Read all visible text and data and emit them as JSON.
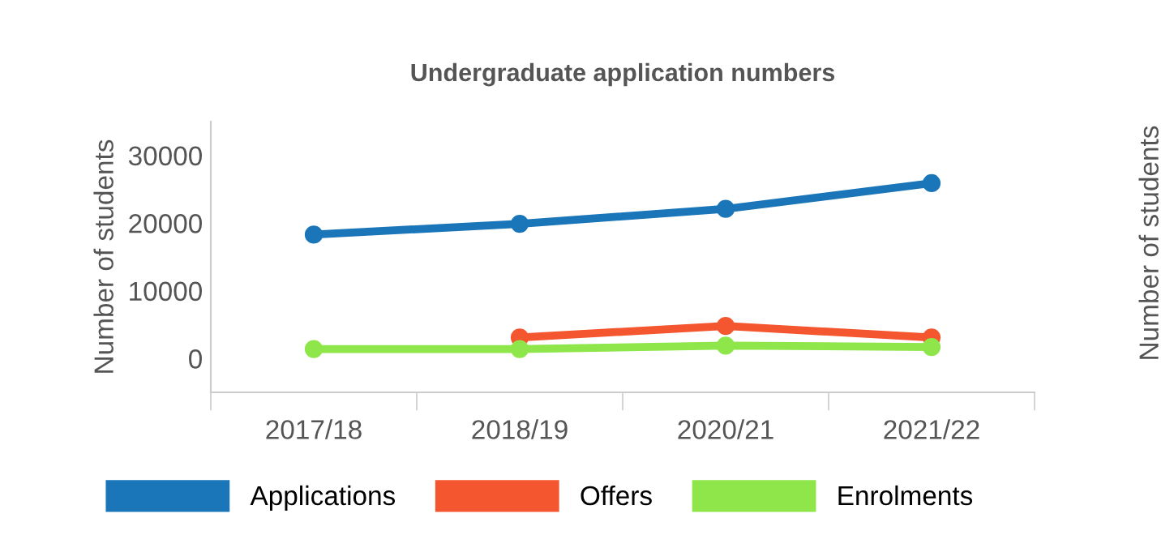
{
  "chart_data": {
    "type": "line",
    "title": "Undergraduate application numbers",
    "ylabel": "Number of students",
    "y2label": "Number of students",
    "categories": [
      "2017/18",
      "2018/19",
      "2020/21",
      "2021/22"
    ],
    "series": [
      {
        "name": "Applications",
        "color": "#1a76b8",
        "values": [
          18300,
          19900,
          22100,
          25900
        ]
      },
      {
        "name": "Offers",
        "color": "#f4572f",
        "values": [
          null,
          3100,
          4800,
          3100
        ]
      },
      {
        "name": "Enrolments",
        "color": "#8ee64a",
        "values": [
          1400,
          1400,
          1900,
          1700
        ]
      }
    ],
    "ylim": [
      -5000,
      35000
    ],
    "yticks": [
      0,
      10000,
      20000,
      30000
    ],
    "grid": false,
    "legend": "bottom",
    "marker": "circle",
    "line_style": "solid"
  }
}
